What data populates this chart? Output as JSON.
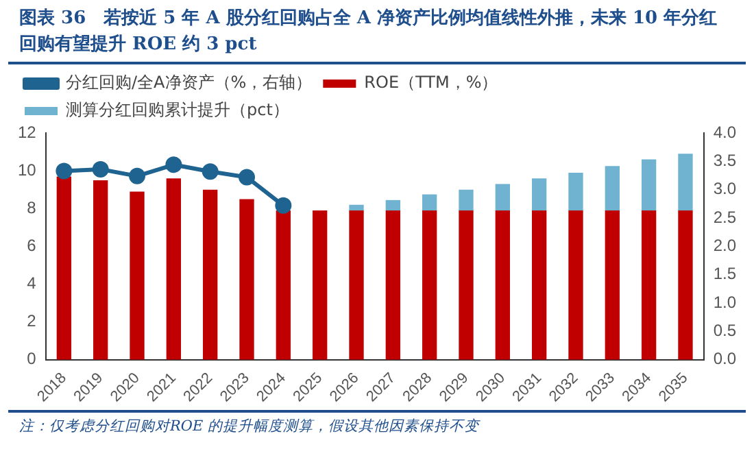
{
  "chart_data": {
    "type": "bar",
    "title": "图表 36　若按近 5 年 A 股分红回购占全 A 净资产比例均值线性外推，未来 10 年分红回购有望提升 ROE 约 3 pct",
    "categories": [
      "2018",
      "2019",
      "2020",
      "2021",
      "2022",
      "2023",
      "2024",
      "2025",
      "2026",
      "2027",
      "2028",
      "2029",
      "2030",
      "2031",
      "2032",
      "2033",
      "2034",
      "2035"
    ],
    "stacked": true,
    "series": [
      {
        "name": "ROE（TTM，%）",
        "color": "#c00000",
        "values": [
          9.7,
          9.5,
          8.9,
          9.6,
          9.0,
          8.5,
          7.9,
          7.9,
          7.9,
          7.9,
          7.9,
          7.9,
          7.9,
          7.9,
          7.9,
          7.9,
          7.9,
          7.9
        ]
      },
      {
        "name": "测算分红回购累计提升（pct）",
        "color": "#6fb3d0",
        "values": [
          null,
          null,
          null,
          null,
          null,
          null,
          null,
          0,
          0.3,
          0.55,
          0.85,
          1.1,
          1.4,
          1.7,
          2.0,
          2.35,
          2.7,
          3.0
        ]
      },
      {
        "name": "分红回购/全A净资产（%，右轴）",
        "type": "line",
        "axis": "y2",
        "color": "#1f6391",
        "marker": "circle",
        "values": [
          3.33,
          3.36,
          3.24,
          3.44,
          3.32,
          3.22,
          2.72,
          null,
          null,
          null,
          null,
          null,
          null,
          null,
          null,
          null,
          null,
          null
        ]
      }
    ],
    "ylim": [
      0,
      12
    ],
    "yticks": [
      0,
      2,
      4,
      6,
      8,
      10,
      12
    ],
    "y2lim": [
      0,
      4
    ],
    "y2ticks": [
      {
        "value": 0,
        "label": "0.0"
      },
      {
        "value": 0.5,
        "label": "0.5"
      },
      {
        "value": 1,
        "label": "1.0"
      },
      {
        "value": 1.5,
        "label": "1.5"
      },
      {
        "value": 2,
        "label": "2.0"
      },
      {
        "value": 2.5,
        "label": "2.5"
      },
      {
        "value": 3,
        "label": "3.0"
      },
      {
        "value": 3.5,
        "label": "3.5"
      },
      {
        "value": 4,
        "label": "4.0"
      }
    ],
    "grid": false,
    "legend": "top",
    "annotations": [
      "注：仅考虑分红回购对ROE 的提升幅度测算，假设其他因素保持不变"
    ]
  }
}
